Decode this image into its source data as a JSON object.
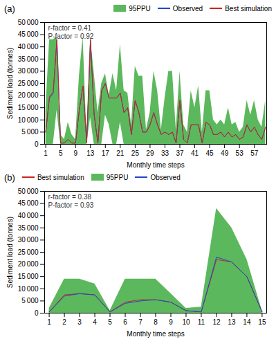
{
  "chart_data": [
    {
      "type": "line",
      "title": "(a)",
      "x_label": "Monthly time steps",
      "y_label": "Sediment load (tonnes)",
      "x": [
        1,
        2,
        3,
        4,
        5,
        6,
        7,
        8,
        9,
        10,
        11,
        12,
        13,
        14,
        15,
        16,
        17,
        18,
        19,
        20,
        21,
        22,
        23,
        24,
        25,
        26,
        27,
        28,
        29,
        30,
        31,
        32,
        33,
        34,
        35,
        36,
        37,
        38,
        39,
        40,
        41,
        42,
        43,
        44,
        45,
        46,
        47,
        48,
        49,
        50,
        51,
        52,
        53,
        54,
        55,
        56,
        57,
        58,
        59,
        60
      ],
      "series": [
        {
          "name": "95PPU",
          "type": "area",
          "color": "#5cb85c",
          "lower": [
            0,
            0,
            0,
            14000,
            0,
            0,
            0,
            0,
            0,
            0,
            0,
            0,
            11000,
            0,
            0,
            0,
            12000,
            8000,
            0,
            0,
            9000,
            0,
            0,
            0,
            0,
            0,
            0,
            0,
            0,
            0,
            0,
            0,
            0,
            0,
            0,
            0,
            0,
            0,
            0,
            0,
            0,
            0,
            0,
            0,
            0,
            0,
            0,
            0,
            0,
            0,
            0,
            0,
            0,
            0,
            0,
            0,
            0,
            0,
            0,
            0
          ],
          "upper": [
            14000,
            43000,
            43000,
            44000,
            4000,
            2000,
            9000,
            4000,
            2000,
            28000,
            44000,
            4000,
            44000,
            29000,
            13000,
            25000,
            29000,
            20000,
            29000,
            22000,
            41000,
            22000,
            21000,
            8000,
            32000,
            28000,
            28000,
            6000,
            13000,
            30000,
            22000,
            6000,
            19000,
            30000,
            30000,
            6000,
            30000,
            8000,
            5000,
            22000,
            15000,
            24000,
            5000,
            22000,
            22000,
            10000,
            8000,
            10000,
            8000,
            15000,
            8000,
            9000,
            5000,
            7000,
            18000,
            12000,
            18000,
            10000,
            7000,
            18000
          ]
        },
        {
          "name": "Observed",
          "type": "line",
          "color": "#2244cc",
          "values": [
            5000,
            19000,
            21000,
            43000,
            500,
            500,
            2000,
            500,
            500,
            14000,
            24000,
            500,
            43000,
            12000,
            500,
            22000,
            25000,
            19000,
            19000,
            19000,
            21000,
            13000,
            15000,
            4000,
            18000,
            13000,
            5000,
            5000,
            8000,
            13000,
            8000,
            4000,
            5000,
            4000,
            5000,
            500,
            18000,
            2000,
            500,
            8000,
            8000,
            8000,
            500,
            9000,
            8000,
            4000,
            4000,
            5000,
            3000,
            5000,
            3000,
            4000,
            2000,
            3000,
            8000,
            5000,
            7000,
            4000,
            2000,
            7000
          ]
        },
        {
          "name": "Best simulation",
          "type": "line",
          "color": "#cc2222",
          "values": [
            5000,
            19500,
            21500,
            43000,
            500,
            500,
            2000,
            500,
            500,
            14000,
            24000,
            500,
            43000,
            12000,
            500,
            22000,
            25000,
            19000,
            19000,
            19000,
            21000,
            13000,
            15000,
            4000,
            18000,
            13000,
            5000,
            5000,
            8000,
            13000,
            8000,
            4000,
            5000,
            4000,
            5000,
            500,
            18000,
            2000,
            500,
            8000,
            8000,
            8000,
            500,
            9000,
            8000,
            4000,
            4000,
            5000,
            3000,
            5000,
            3000,
            4000,
            2000,
            3000,
            8000,
            5000,
            7000,
            4000,
            2000,
            7000
          ]
        }
      ],
      "annotations": [
        "r-factor = 0.41",
        "P-factor = 0.92"
      ],
      "xlim": [
        0.7,
        60.3
      ],
      "xticks": [
        1,
        5,
        9,
        13,
        17,
        21,
        25,
        29,
        33,
        37,
        41,
        45,
        49,
        53,
        57
      ],
      "ylim": [
        0,
        50000
      ],
      "yticks": [
        0,
        {
          "value": 5000,
          "label": "5 000"
        },
        {
          "value": 10000,
          "label": "10 000"
        },
        {
          "value": 15000,
          "label": "15 000"
        },
        {
          "value": 20000,
          "label": "20 000"
        },
        {
          "value": 25000,
          "label": "25 000"
        },
        {
          "value": 30000,
          "label": "30 000"
        },
        {
          "value": 35000,
          "label": "35 000"
        },
        {
          "value": 40000,
          "label": "40 000"
        },
        {
          "value": 45000,
          "label": "45 000"
        },
        {
          "value": 50000,
          "label": "50 000"
        }
      ],
      "legend": "upper right",
      "grid": false
    },
    {
      "type": "line",
      "title": "(b)",
      "x_label": "Monthly time steps",
      "y_label": "Sediment load (tonnes)",
      "x": [
        1,
        2,
        3,
        4,
        5,
        6,
        7,
        8,
        9,
        10,
        11,
        12,
        13,
        14,
        15
      ],
      "series": [
        {
          "name": "Best simulation",
          "type": "line",
          "color": "#cc2222",
          "values": [
            500,
            7500,
            8000,
            7500,
            500,
            4500,
            5500,
            5500,
            4500,
            1000,
            500,
            22000,
            21000,
            15000,
            500
          ]
        },
        {
          "name": "95PPU",
          "type": "area",
          "color": "#5cb85c",
          "lower": [
            0,
            0,
            0,
            0,
            0,
            0,
            0,
            0,
            0,
            0,
            0,
            0,
            0,
            0,
            0
          ],
          "upper": [
            2000,
            14000,
            14000,
            12000,
            1000,
            14000,
            14000,
            14000,
            8000,
            2000,
            2500,
            43000,
            35000,
            22000,
            1000
          ]
        },
        {
          "name": "Observed",
          "type": "line",
          "color": "#2244cc",
          "values": [
            500,
            7000,
            8000,
            7500,
            500,
            4000,
            5000,
            5500,
            4500,
            1000,
            500,
            23000,
            21000,
            15000,
            500
          ]
        }
      ],
      "annotations": [
        "r-factor = 0.38",
        "P-factor = 0.93"
      ],
      "xlim": [
        0.7,
        15.3
      ],
      "xticks": [
        1,
        2,
        3,
        4,
        5,
        6,
        7,
        8,
        9,
        10,
        11,
        12,
        13,
        14,
        15
      ],
      "ylim": [
        0,
        50000
      ],
      "yticks": [
        0,
        {
          "value": 5000,
          "label": "5 000"
        },
        {
          "value": 10000,
          "label": "10 000"
        },
        {
          "value": 15000,
          "label": "15 000"
        },
        {
          "value": 20000,
          "label": "20 000"
        },
        {
          "value": 25000,
          "label": "25 000"
        },
        {
          "value": 30000,
          "label": "30 000"
        },
        {
          "value": 35000,
          "label": "35 000"
        },
        {
          "value": 40000,
          "label": "40 000"
        },
        {
          "value": 45000,
          "label": "45 000"
        },
        {
          "value": 50000,
          "label": "50 000"
        }
      ],
      "legend": "upper left",
      "grid": false
    }
  ]
}
